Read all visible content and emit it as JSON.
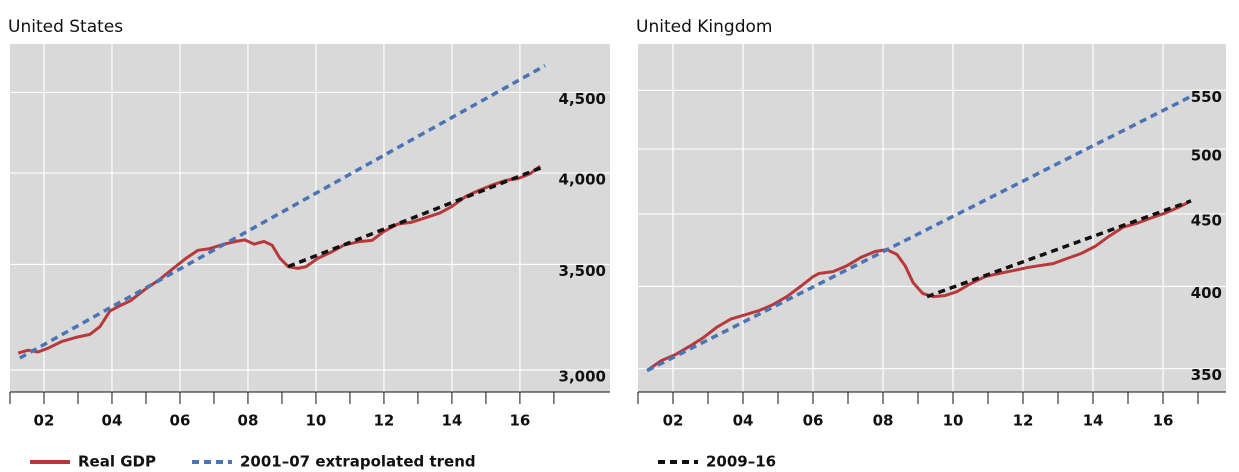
{
  "chart_data": [
    {
      "type": "line",
      "title": "United States",
      "yscale": "log",
      "grid": true,
      "xlim": [
        2001,
        2018.65
      ],
      "ylim": [
        2905,
        4830
      ],
      "xticks": [
        {
          "value": 2002,
          "label": "02"
        },
        {
          "value": 2004,
          "label": "04"
        },
        {
          "value": 2006,
          "label": "06"
        },
        {
          "value": 2008,
          "label": "08"
        },
        {
          "value": 2010,
          "label": "10"
        },
        {
          "value": 2012,
          "label": "12"
        },
        {
          "value": 2014,
          "label": "14"
        },
        {
          "value": 2016,
          "label": "16"
        }
      ],
      "xminorticks": [
        2001,
        2003,
        2005,
        2007,
        2009,
        2011,
        2013,
        2015,
        2017
      ],
      "yticks": [
        {
          "value": 3000,
          "label": "3,000"
        },
        {
          "value": 3500,
          "label": "3,500"
        },
        {
          "value": 4000,
          "label": "4,000"
        },
        {
          "value": 4500,
          "label": "4,500"
        }
      ],
      "series": [
        {
          "name": "Real GDP",
          "color": "#b8393b",
          "style": "solid",
          "x": [
            2001.24,
            2001.53,
            2001.82,
            2002.12,
            2002.53,
            2002.94,
            2003.35,
            2003.65,
            2003.94,
            2004.24,
            2004.53,
            2005.0,
            2005.41,
            2005.76,
            2006.18,
            2006.53,
            2006.88,
            2007.29,
            2007.65,
            2007.91,
            2008.18,
            2008.47,
            2008.71,
            2008.94,
            2009.18,
            2009.47,
            2009.71,
            2010.06,
            2010.41,
            2010.82,
            2011.24,
            2011.65,
            2012.0,
            2012.41,
            2012.82,
            2013.24,
            2013.65,
            2014.0,
            2014.41,
            2014.76,
            2015.18,
            2015.59,
            2015.94,
            2016.29,
            2016.59
          ],
          "values": [
            3075,
            3088,
            3080,
            3097,
            3128,
            3146,
            3160,
            3197,
            3270,
            3296,
            3318,
            3378,
            3425,
            3474,
            3532,
            3573,
            3582,
            3605,
            3620,
            3628,
            3605,
            3620,
            3600,
            3532,
            3489,
            3480,
            3489,
            3532,
            3560,
            3600,
            3618,
            3625,
            3673,
            3713,
            3723,
            3748,
            3774,
            3810,
            3866,
            3897,
            3930,
            3958,
            3968,
            3995,
            4040
          ]
        },
        {
          "name": "2001–07 extrapolated trend",
          "color": "#4a74b5",
          "style": "dashed",
          "x": [
            2001.29,
            2016.74
          ],
          "values": [
            3053,
            4680
          ]
        },
        {
          "color": "#111111",
          "style": "dashed",
          "x": [
            2009.18,
            2016.74
          ],
          "values": [
            3489,
            4040
          ]
        }
      ]
    },
    {
      "type": "line",
      "title": "United Kingdom",
      "yscale": "log",
      "grid": true,
      "xlim": [
        2001,
        2017.8
      ],
      "ylim": [
        337,
        593
      ],
      "xticks": [
        {
          "value": 2002,
          "label": "02"
        },
        {
          "value": 2004,
          "label": "04"
        },
        {
          "value": 2006,
          "label": "06"
        },
        {
          "value": 2008,
          "label": "08"
        },
        {
          "value": 2010,
          "label": "10"
        },
        {
          "value": 2012,
          "label": "12"
        },
        {
          "value": 2014,
          "label": "14"
        },
        {
          "value": 2016,
          "label": "16"
        }
      ],
      "xminorticks": [
        2001,
        2003,
        2005,
        2007,
        2009,
        2011,
        2013,
        2015,
        2017
      ],
      "yticks": [
        350,
        400,
        450,
        500,
        550
      ],
      "series": [
        {
          "color": "#b8393b",
          "style": "solid",
          "x": [
            2001.26,
            2001.66,
            2002.06,
            2002.46,
            2002.86,
            2003.26,
            2003.66,
            2004.06,
            2004.46,
            2004.86,
            2005.26,
            2005.66,
            2006.0,
            2006.17,
            2006.57,
            2006.97,
            2007.37,
            2007.77,
            2008.11,
            2008.4,
            2008.63,
            2008.86,
            2009.14,
            2009.43,
            2009.77,
            2010.11,
            2010.51,
            2010.91,
            2011.31,
            2011.71,
            2012.11,
            2012.46,
            2012.86,
            2013.26,
            2013.66,
            2014.06,
            2014.46,
            2014.86,
            2015.26,
            2015.66,
            2016.06,
            2016.46,
            2016.74
          ],
          "values": [
            349,
            354.6,
            358,
            362.8,
            368,
            374.5,
            379.5,
            382,
            384.6,
            388.4,
            393.6,
            400.3,
            406.4,
            408.5,
            409.8,
            413.7,
            419.3,
            423.4,
            424.7,
            421.3,
            413.7,
            402.5,
            395.4,
            393.5,
            394.1,
            396.6,
            401.9,
            406.4,
            408.5,
            410.4,
            412.4,
            413.7,
            415.1,
            418.6,
            422,
            426.9,
            434,
            440.4,
            443.3,
            447,
            450.6,
            455.1,
            458.8
          ]
        },
        {
          "color": "#4a74b5",
          "style": "dashed",
          "x": [
            2001.26,
            2016.8
          ],
          "values": [
            348.9,
            544.6
          ]
        },
        {
          "name": "2009–16",
          "color": "#111111",
          "style": "dashed",
          "x": [
            2009.26,
            2016.8
          ],
          "values": [
            393.5,
            459.6
          ]
        }
      ]
    }
  ]
}
